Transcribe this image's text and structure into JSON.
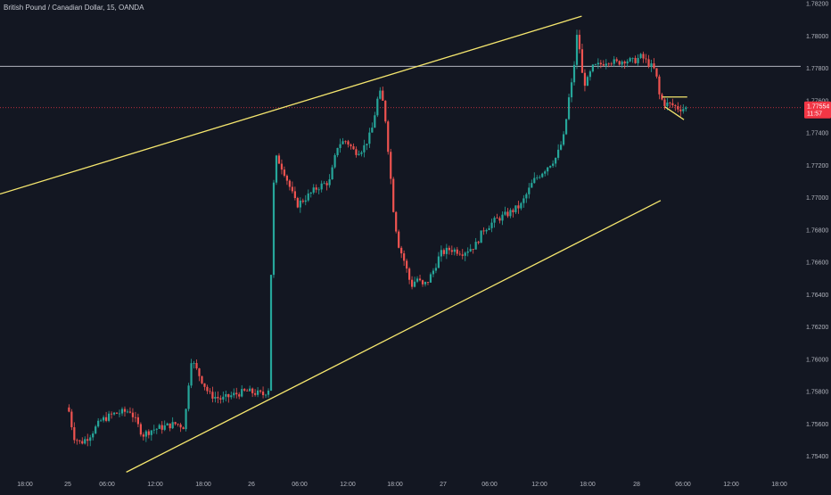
{
  "header": {
    "symbol_title": "British Pound / Canadian Dollar, 15, OANDA"
  },
  "price_badge": {
    "price": "1.77554",
    "countdown": "11:57"
  },
  "colors": {
    "background": "#131722",
    "bull": "#26a69a",
    "bear": "#ef5350",
    "trendline": "#f5e66e",
    "hline": "#b2b5be",
    "last_price": "#f23645",
    "axis_text": "#b2b5be"
  },
  "chart_data": {
    "type": "candlestick",
    "y_axis": {
      "ticks": [
        "1.75400",
        "1.75600",
        "1.75800",
        "1.76000",
        "1.76200",
        "1.76400",
        "1.76600",
        "1.76800",
        "1.77000",
        "1.77200",
        "1.77400",
        "1.77600",
        "1.77800",
        "1.78000",
        "1.78200"
      ],
      "range": [
        1.7528,
        1.7822
      ],
      "position": "right"
    },
    "x_axis": {
      "ticks": [
        "18:00",
        "25",
        "06:00",
        "12:00",
        "18:00",
        "26",
        "06:00",
        "12:00",
        "18:00",
        "27",
        "06:00",
        "12:00",
        "18:00",
        "28",
        "06:00",
        "12:00",
        "18:00"
      ]
    },
    "horizontal_line": {
      "price": 1.7781
    },
    "last_price_line": {
      "price": 1.77554
    },
    "trendlines": [
      {
        "name": "channel-upper",
        "from": [
          0.0,
          1.7702
        ],
        "to": [
          0.7,
          1.7812
        ]
      },
      {
        "name": "channel-lower",
        "from": [
          0.152,
          1.753
        ],
        "to": [
          0.795,
          1.7698
        ]
      },
      {
        "name": "wedge-upper",
        "from": [
          0.797,
          1.7762
        ],
        "to": [
          0.827,
          1.7762
        ]
      },
      {
        "name": "wedge-lower",
        "from": [
          0.8,
          1.7756
        ],
        "to": [
          0.823,
          1.7748
        ]
      }
    ],
    "price_path": [
      [
        0.083,
        1.757
      ],
      [
        0.086,
        1.7568
      ],
      [
        0.092,
        1.7552
      ],
      [
        0.1,
        1.7548
      ],
      [
        0.11,
        1.7552
      ],
      [
        0.125,
        1.7562
      ],
      [
        0.14,
        1.7566
      ],
      [
        0.16,
        1.7568
      ],
      [
        0.175,
        1.7553
      ],
      [
        0.185,
        1.7556
      ],
      [
        0.2,
        1.7558
      ],
      [
        0.215,
        1.756
      ],
      [
        0.225,
        1.7558
      ],
      [
        0.233,
        1.76
      ],
      [
        0.245,
        1.7588
      ],
      [
        0.255,
        1.7578
      ],
      [
        0.27,
        1.7575
      ],
      [
        0.285,
        1.7578
      ],
      [
        0.3,
        1.758
      ],
      [
        0.32,
        1.7578
      ],
      [
        0.327,
        1.7582
      ],
      [
        0.331,
        1.77
      ],
      [
        0.336,
        1.7725
      ],
      [
        0.345,
        1.7716
      ],
      [
        0.36,
        1.7695
      ],
      [
        0.372,
        1.77
      ],
      [
        0.385,
        1.7706
      ],
      [
        0.4,
        1.771
      ],
      [
        0.41,
        1.7733
      ],
      [
        0.42,
        1.7735
      ],
      [
        0.43,
        1.7728
      ],
      [
        0.44,
        1.773
      ],
      [
        0.45,
        1.774
      ],
      [
        0.458,
        1.7762
      ],
      [
        0.462,
        1.7765
      ],
      [
        0.467,
        1.7748
      ],
      [
        0.472,
        1.772
      ],
      [
        0.476,
        1.7695
      ],
      [
        0.482,
        1.7672
      ],
      [
        0.49,
        1.766
      ],
      [
        0.498,
        1.7645
      ],
      [
        0.505,
        1.765
      ],
      [
        0.512,
        1.7645
      ],
      [
        0.518,
        1.7648
      ],
      [
        0.525,
        1.7655
      ],
      [
        0.533,
        1.7665
      ],
      [
        0.545,
        1.7668
      ],
      [
        0.56,
        1.7666
      ],
      [
        0.575,
        1.767
      ],
      [
        0.585,
        1.768
      ],
      [
        0.6,
        1.7686
      ],
      [
        0.615,
        1.769
      ],
      [
        0.63,
        1.7695
      ],
      [
        0.645,
        1.771
      ],
      [
        0.66,
        1.7718
      ],
      [
        0.673,
        1.7725
      ],
      [
        0.682,
        1.7738
      ],
      [
        0.688,
        1.7762
      ],
      [
        0.693,
        1.7775
      ],
      [
        0.697,
        1.78
      ],
      [
        0.7,
        1.7795
      ],
      [
        0.705,
        1.777
      ],
      [
        0.71,
        1.7772
      ],
      [
        0.716,
        1.778
      ],
      [
        0.725,
        1.7782
      ],
      [
        0.735,
        1.7785
      ],
      [
        0.745,
        1.7783
      ],
      [
        0.755,
        1.7785
      ],
      [
        0.765,
        1.7784
      ],
      [
        0.775,
        1.7787
      ],
      [
        0.785,
        1.7782
      ],
      [
        0.792,
        1.7778
      ],
      [
        0.797,
        1.7762
      ],
      [
        0.803,
        1.7758
      ],
      [
        0.812,
        1.7757
      ],
      [
        0.82,
        1.7755
      ],
      [
        0.828,
        1.7755
      ]
    ]
  }
}
